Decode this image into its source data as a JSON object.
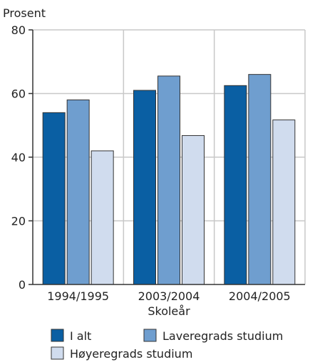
{
  "chart_data": {
    "type": "bar",
    "y_unit_label": "Prosent",
    "xlabel": "Skoleår",
    "categories": [
      "1994/1995",
      "2003/2004",
      "2004/2005"
    ],
    "series": [
      {
        "name": "I alt",
        "color": "#0a5fa3",
        "values": [
          54,
          61,
          62.5
        ]
      },
      {
        "name": "Laveregrads studium",
        "color": "#6f9ecf",
        "values": [
          58,
          65.5,
          66
        ]
      },
      {
        "name": "Høyeregrads studium",
        "color": "#d0dcee",
        "values": [
          42,
          46.8,
          51.7
        ]
      }
    ],
    "ylim": [
      0,
      80
    ],
    "yticks": [
      0,
      20,
      40,
      60,
      80
    ],
    "grid": true,
    "legend_position": "bottom"
  }
}
